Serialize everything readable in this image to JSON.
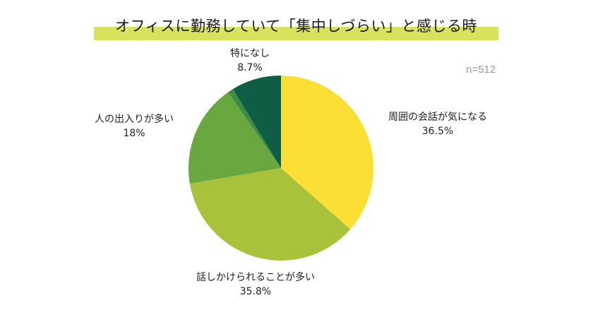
{
  "chart_data": {
    "type": "pie",
    "title": "オフィスに勤務していて「集中しづらい」と感じる時",
    "note": "n=512",
    "slices": [
      {
        "label": "周囲の会話が気になる",
        "value": 36.5,
        "display": "36.5%",
        "color": "#fbdf35"
      },
      {
        "label": "話しかけられることが多い",
        "value": 35.8,
        "display": "35.8%",
        "color": "#a8c23b"
      },
      {
        "label": "人の出入りが多い",
        "value": 18,
        "display": "18%",
        "color": "#69a83f"
      },
      {
        "label": "",
        "value": 1.0,
        "display": "",
        "color": "#3f8a45"
      },
      {
        "label": "特になし",
        "value": 8.7,
        "display": "8.7%",
        "color": "#0d5e45"
      }
    ]
  }
}
